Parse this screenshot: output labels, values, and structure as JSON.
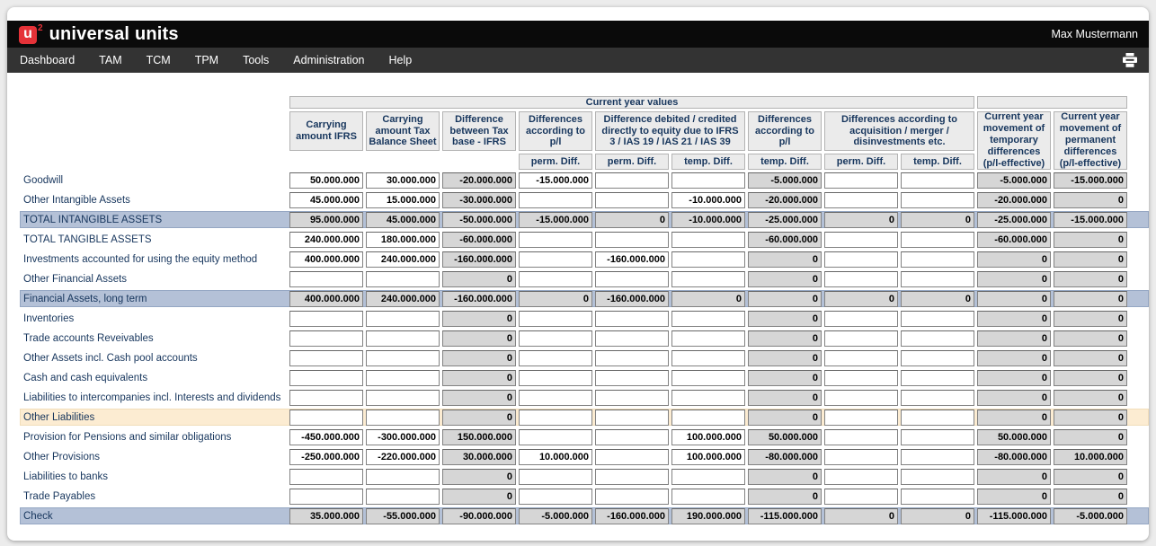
{
  "app": {
    "brand": "universal units",
    "logo_letter": "u",
    "logo_sup": "2",
    "user": "Max Mustermann"
  },
  "nav": {
    "items": [
      "Dashboard",
      "TAM",
      "TCM",
      "TPM",
      "Tools",
      "Administration",
      "Help"
    ],
    "print_icon": "printer-icon"
  },
  "colors": {
    "accent_red": "#e53238",
    "topbar": "#0a0a0a",
    "navbar": "#333333",
    "header_cell_bg": "#ebebeb",
    "readonly_cell_bg": "#d6d6d6",
    "highlight_blue": "#b4c1d7",
    "highlight_cream": "#fcecd2",
    "header_text": "#17365d"
  },
  "table": {
    "group_header": "Current year values",
    "headers": [
      "Carrying amount IFRS",
      "Carrying amount Tax Balance Sheet",
      "Difference between Tax base - IFRS",
      "Differences according to p/l",
      "Difference debited / credited directly to equity due to IFRS 3 / IAS 19 / IAS 21 / IAS 39",
      "Differences according to p/l",
      "Differences according to acquisition / merger / disinvestments etc.",
      "Current year movement of temporary differences (p/l-effective)",
      "Current year movement of permanent differences (p/l-effective)"
    ],
    "subs": [
      "perm. Diff.",
      "perm. Diff.",
      "temp. Diff.",
      "temp. Diff.",
      "perm. Diff.",
      "temp. Diff."
    ],
    "readonly_columns": [
      2,
      6,
      9,
      10
    ],
    "rows": [
      {
        "label": "Goodwill",
        "hl": "",
        "all_ro": false,
        "cells": [
          "50.000.000",
          "30.000.000",
          "-20.000.000",
          "-15.000.000",
          "",
          "",
          "-5.000.000",
          "",
          "",
          "-5.000.000",
          "-15.000.000"
        ]
      },
      {
        "label": "Other Intangible Assets",
        "hl": "",
        "all_ro": false,
        "cells": [
          "45.000.000",
          "15.000.000",
          "-30.000.000",
          "",
          "",
          "-10.000.000",
          "-20.000.000",
          "",
          "",
          "-20.000.000",
          "0"
        ]
      },
      {
        "label": "TOTAL INTANGIBLE ASSETS",
        "hl": "blue",
        "all_ro": true,
        "cells": [
          "95.000.000",
          "45.000.000",
          "-50.000.000",
          "-15.000.000",
          "0",
          "-10.000.000",
          "-25.000.000",
          "0",
          "0",
          "-25.000.000",
          "-15.000.000"
        ]
      },
      {
        "label": "TOTAL TANGIBLE ASSETS",
        "hl": "",
        "all_ro": false,
        "cells": [
          "240.000.000",
          "180.000.000",
          "-60.000.000",
          "",
          "",
          "",
          "-60.000.000",
          "",
          "",
          "-60.000.000",
          "0"
        ]
      },
      {
        "label": "Investments accounted for using the equity method",
        "hl": "",
        "all_ro": false,
        "cells": [
          "400.000.000",
          "240.000.000",
          "-160.000.000",
          "",
          "-160.000.000",
          "",
          "0",
          "",
          "",
          "0",
          "0"
        ]
      },
      {
        "label": "Other Financial Assets",
        "hl": "",
        "all_ro": false,
        "cells": [
          "",
          "",
          "0",
          "",
          "",
          "",
          "0",
          "",
          "",
          "0",
          "0"
        ]
      },
      {
        "label": "Financial Assets, long term",
        "hl": "blue",
        "all_ro": true,
        "cells": [
          "400.000.000",
          "240.000.000",
          "-160.000.000",
          "0",
          "-160.000.000",
          "0",
          "0",
          "0",
          "0",
          "0",
          "0"
        ]
      },
      {
        "label": "Inventories",
        "hl": "",
        "all_ro": false,
        "cells": [
          "",
          "",
          "0",
          "",
          "",
          "",
          "0",
          "",
          "",
          "0",
          "0"
        ]
      },
      {
        "label": "Trade accounts Reveivables",
        "hl": "",
        "all_ro": false,
        "cells": [
          "",
          "",
          "0",
          "",
          "",
          "",
          "0",
          "",
          "",
          "0",
          "0"
        ]
      },
      {
        "label": "Other Assets incl. Cash pool accounts",
        "hl": "",
        "all_ro": false,
        "cells": [
          "",
          "",
          "0",
          "",
          "",
          "",
          "0",
          "",
          "",
          "0",
          "0"
        ]
      },
      {
        "label": "Cash and cash equivalents",
        "hl": "",
        "all_ro": false,
        "cells": [
          "",
          "",
          "0",
          "",
          "",
          "",
          "0",
          "",
          "",
          "0",
          "0"
        ]
      },
      {
        "label": "Liabilities to intercompanies incl. Interests and dividends",
        "hl": "",
        "all_ro": false,
        "cells": [
          "",
          "",
          "0",
          "",
          "",
          "",
          "0",
          "",
          "",
          "0",
          "0"
        ]
      },
      {
        "label": "Other Liabilities",
        "hl": "cream",
        "all_ro": false,
        "cells": [
          "",
          "",
          "0",
          "",
          "",
          "",
          "0",
          "",
          "",
          "0",
          "0"
        ]
      },
      {
        "label": "Provision for Pensions and similar obligations",
        "hl": "",
        "all_ro": false,
        "cells": [
          "-450.000.000",
          "-300.000.000",
          "150.000.000",
          "",
          "",
          "100.000.000",
          "50.000.000",
          "",
          "",
          "50.000.000",
          "0"
        ]
      },
      {
        "label": "Other Provisions",
        "hl": "",
        "all_ro": false,
        "cells": [
          "-250.000.000",
          "-220.000.000",
          "30.000.000",
          "10.000.000",
          "",
          "100.000.000",
          "-80.000.000",
          "",
          "",
          "-80.000.000",
          "10.000.000"
        ]
      },
      {
        "label": "Liabilities to banks",
        "hl": "",
        "all_ro": false,
        "cells": [
          "",
          "",
          "0",
          "",
          "",
          "",
          "0",
          "",
          "",
          "0",
          "0"
        ]
      },
      {
        "label": "Trade Payables",
        "hl": "",
        "all_ro": false,
        "cells": [
          "",
          "",
          "0",
          "",
          "",
          "",
          "0",
          "",
          "",
          "0",
          "0"
        ]
      },
      {
        "label": "Check",
        "hl": "blue",
        "all_ro": true,
        "cells": [
          "35.000.000",
          "-55.000.000",
          "-90.000.000",
          "-5.000.000",
          "-160.000.000",
          "190.000.000",
          "-115.000.000",
          "0",
          "0",
          "-115.000.000",
          "-5.000.000"
        ]
      }
    ]
  }
}
